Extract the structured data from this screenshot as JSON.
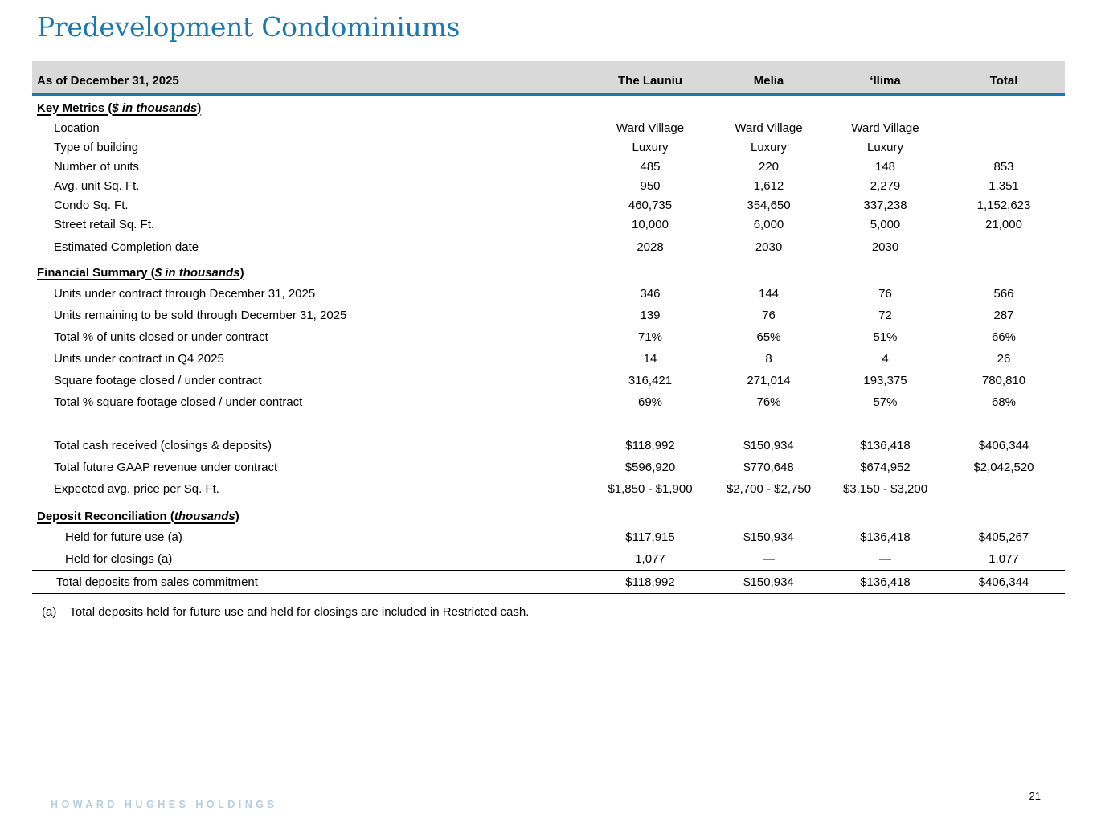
{
  "slide": {
    "title": "Predevelopment Condominiums",
    "page_number": "21",
    "brand": "HOWARD HUGHES HOLDINGS",
    "footnote_marker": "(a)",
    "footnote_text": "Total deposits held for future use and held for closings are included in Restricted cash."
  },
  "table": {
    "as_of_label": "As of December 31, 2025",
    "columns": [
      "The Launiu",
      "Melia",
      "‘Ilima",
      "Total"
    ],
    "sections": [
      {
        "id": "key_metrics",
        "heading_prefix": "Key Metrics (",
        "heading_italic": "$ in thousands",
        "heading_suffix": ")",
        "rows": [
          {
            "label": "Location",
            "values": [
              "Ward Village",
              "Ward Village",
              "Ward Village",
              ""
            ]
          },
          {
            "label": "Type of building",
            "values": [
              "Luxury",
              "Luxury",
              "Luxury",
              ""
            ]
          },
          {
            "label": "Number of units",
            "values": [
              "485",
              "220",
              "148",
              "853"
            ]
          },
          {
            "label": "Avg. unit Sq. Ft.",
            "values": [
              "950",
              "1,612",
              "2,279",
              "1,351"
            ]
          },
          {
            "label": "Condo Sq. Ft.",
            "values": [
              "460,735",
              "354,650",
              "337,238",
              "1,152,623"
            ]
          },
          {
            "label": "Street retail Sq. Ft.",
            "values": [
              "10,000",
              "6,000",
              "5,000",
              "21,000"
            ]
          },
          {
            "label": "Estimated Completion date",
            "values": [
              "2028",
              "2030",
              "2030",
              ""
            ],
            "gap_before": true
          }
        ]
      },
      {
        "id": "financial_summary",
        "heading_prefix": "Financial Summary (",
        "heading_italic": "$ in thousands",
        "heading_suffix": ")",
        "rows": [
          {
            "label": "Units under contract through December 31, 2025",
            "values": [
              "346",
              "144",
              "76",
              "566"
            ]
          },
          {
            "label": "Units remaining to be sold through December 31, 2025",
            "values": [
              "139",
              "76",
              "72",
              "287"
            ]
          },
          {
            "label": "Total % of units closed or under contract",
            "values": [
              "71%",
              "65%",
              "51%",
              "66%"
            ]
          },
          {
            "label": "Units under contract in Q4 2025",
            "values": [
              "14",
              "8",
              "4",
              "26"
            ]
          },
          {
            "label": "Square footage closed / under contract",
            "values": [
              "316,421",
              "271,014",
              "193,375",
              "780,810"
            ]
          },
          {
            "label": "Total % square footage closed / under contract",
            "values": [
              "69%",
              "76%",
              "57%",
              "68%"
            ]
          },
          {
            "label": "Total cash received (closings & deposits)",
            "values": [
              "$118,992",
              "$150,934",
              "$136,418",
              "$406,344"
            ],
            "spacer_before": true
          },
          {
            "label": "Total future GAAP revenue under contract",
            "values": [
              "$596,920",
              "$770,648",
              "$674,952",
              "$2,042,520"
            ]
          },
          {
            "label": "Expected avg. price per Sq. Ft.",
            "values": [
              "$1,850 - $1,900",
              "$2,700 - $2,750",
              "$3,150 - $3,200",
              ""
            ]
          }
        ]
      },
      {
        "id": "deposit_reconciliation",
        "heading_prefix": "Deposit Reconciliation (",
        "heading_italic": "thousands",
        "heading_suffix": ")",
        "rows": [
          {
            "label": "Held for future use (a)",
            "values": [
              "$117,915",
              "$150,934",
              "$136,418",
              "$405,267"
            ],
            "indent": 2
          },
          {
            "label": "Held for closings (a)",
            "values": [
              "1,077",
              "—",
              "—",
              "1,077"
            ],
            "indent": 2
          }
        ]
      }
    ],
    "total_row": {
      "label": "Total deposits from sales commitment",
      "values": [
        "$118,992",
        "$150,934",
        "$136,418",
        "$406,344"
      ]
    }
  }
}
